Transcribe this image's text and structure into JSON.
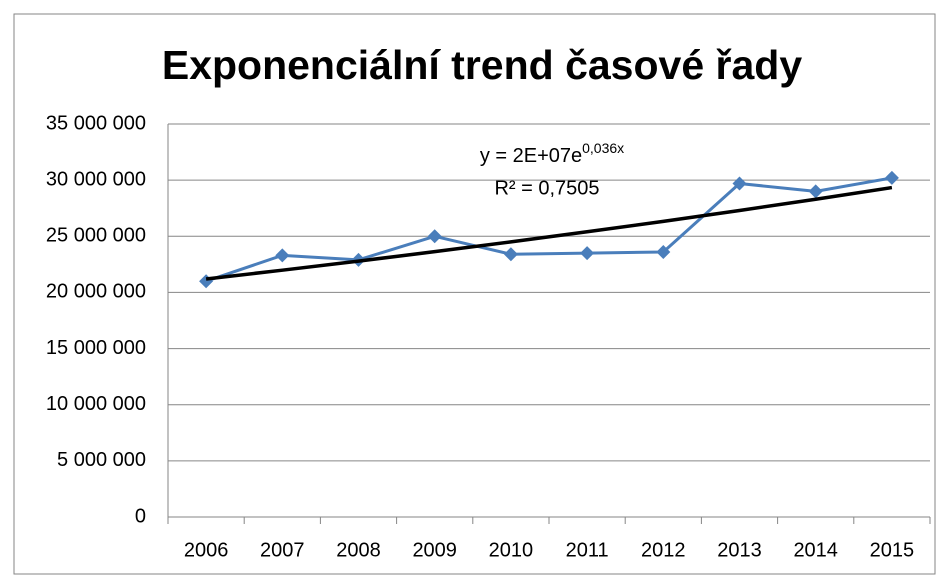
{
  "chart_data": {
    "type": "line",
    "title": "Exponenciální trend časové řady",
    "categories": [
      "2006",
      "2007",
      "2008",
      "2009",
      "2010",
      "2011",
      "2012",
      "2013",
      "2014",
      "2015"
    ],
    "series": [
      {
        "color": "#4a7ebb",
        "values": [
          21000000,
          23300000,
          22900000,
          25000000,
          23400000,
          23500000,
          23600000,
          29700000,
          29000000,
          30200000
        ]
      }
    ],
    "trendline": {
      "color": "#000000",
      "values": [
        21200000,
        21980000,
        22790000,
        23630000,
        24500000,
        25400000,
        26330000,
        27300000,
        28300000,
        29340000
      ]
    },
    "annotation": {
      "equation": "y = 2E+07e",
      "equation_exponent": "0,036x",
      "r_squared": "R² = 0,7505"
    },
    "ylim": [
      0,
      35000000
    ],
    "yticks": [
      0,
      {
        "value": 5000000,
        "label": "5 000 000"
      },
      {
        "value": 10000000,
        "label": "10 000 000"
      },
      {
        "value": 15000000,
        "label": "15 000 000"
      },
      {
        "value": 20000000,
        "label": "20 000 000"
      },
      {
        "value": 25000000,
        "label": "25 000 000"
      },
      {
        "value": 30000000,
        "label": "30 000 000"
      },
      {
        "value": 35000000,
        "label": "35 000 000"
      }
    ],
    "grid": true
  }
}
